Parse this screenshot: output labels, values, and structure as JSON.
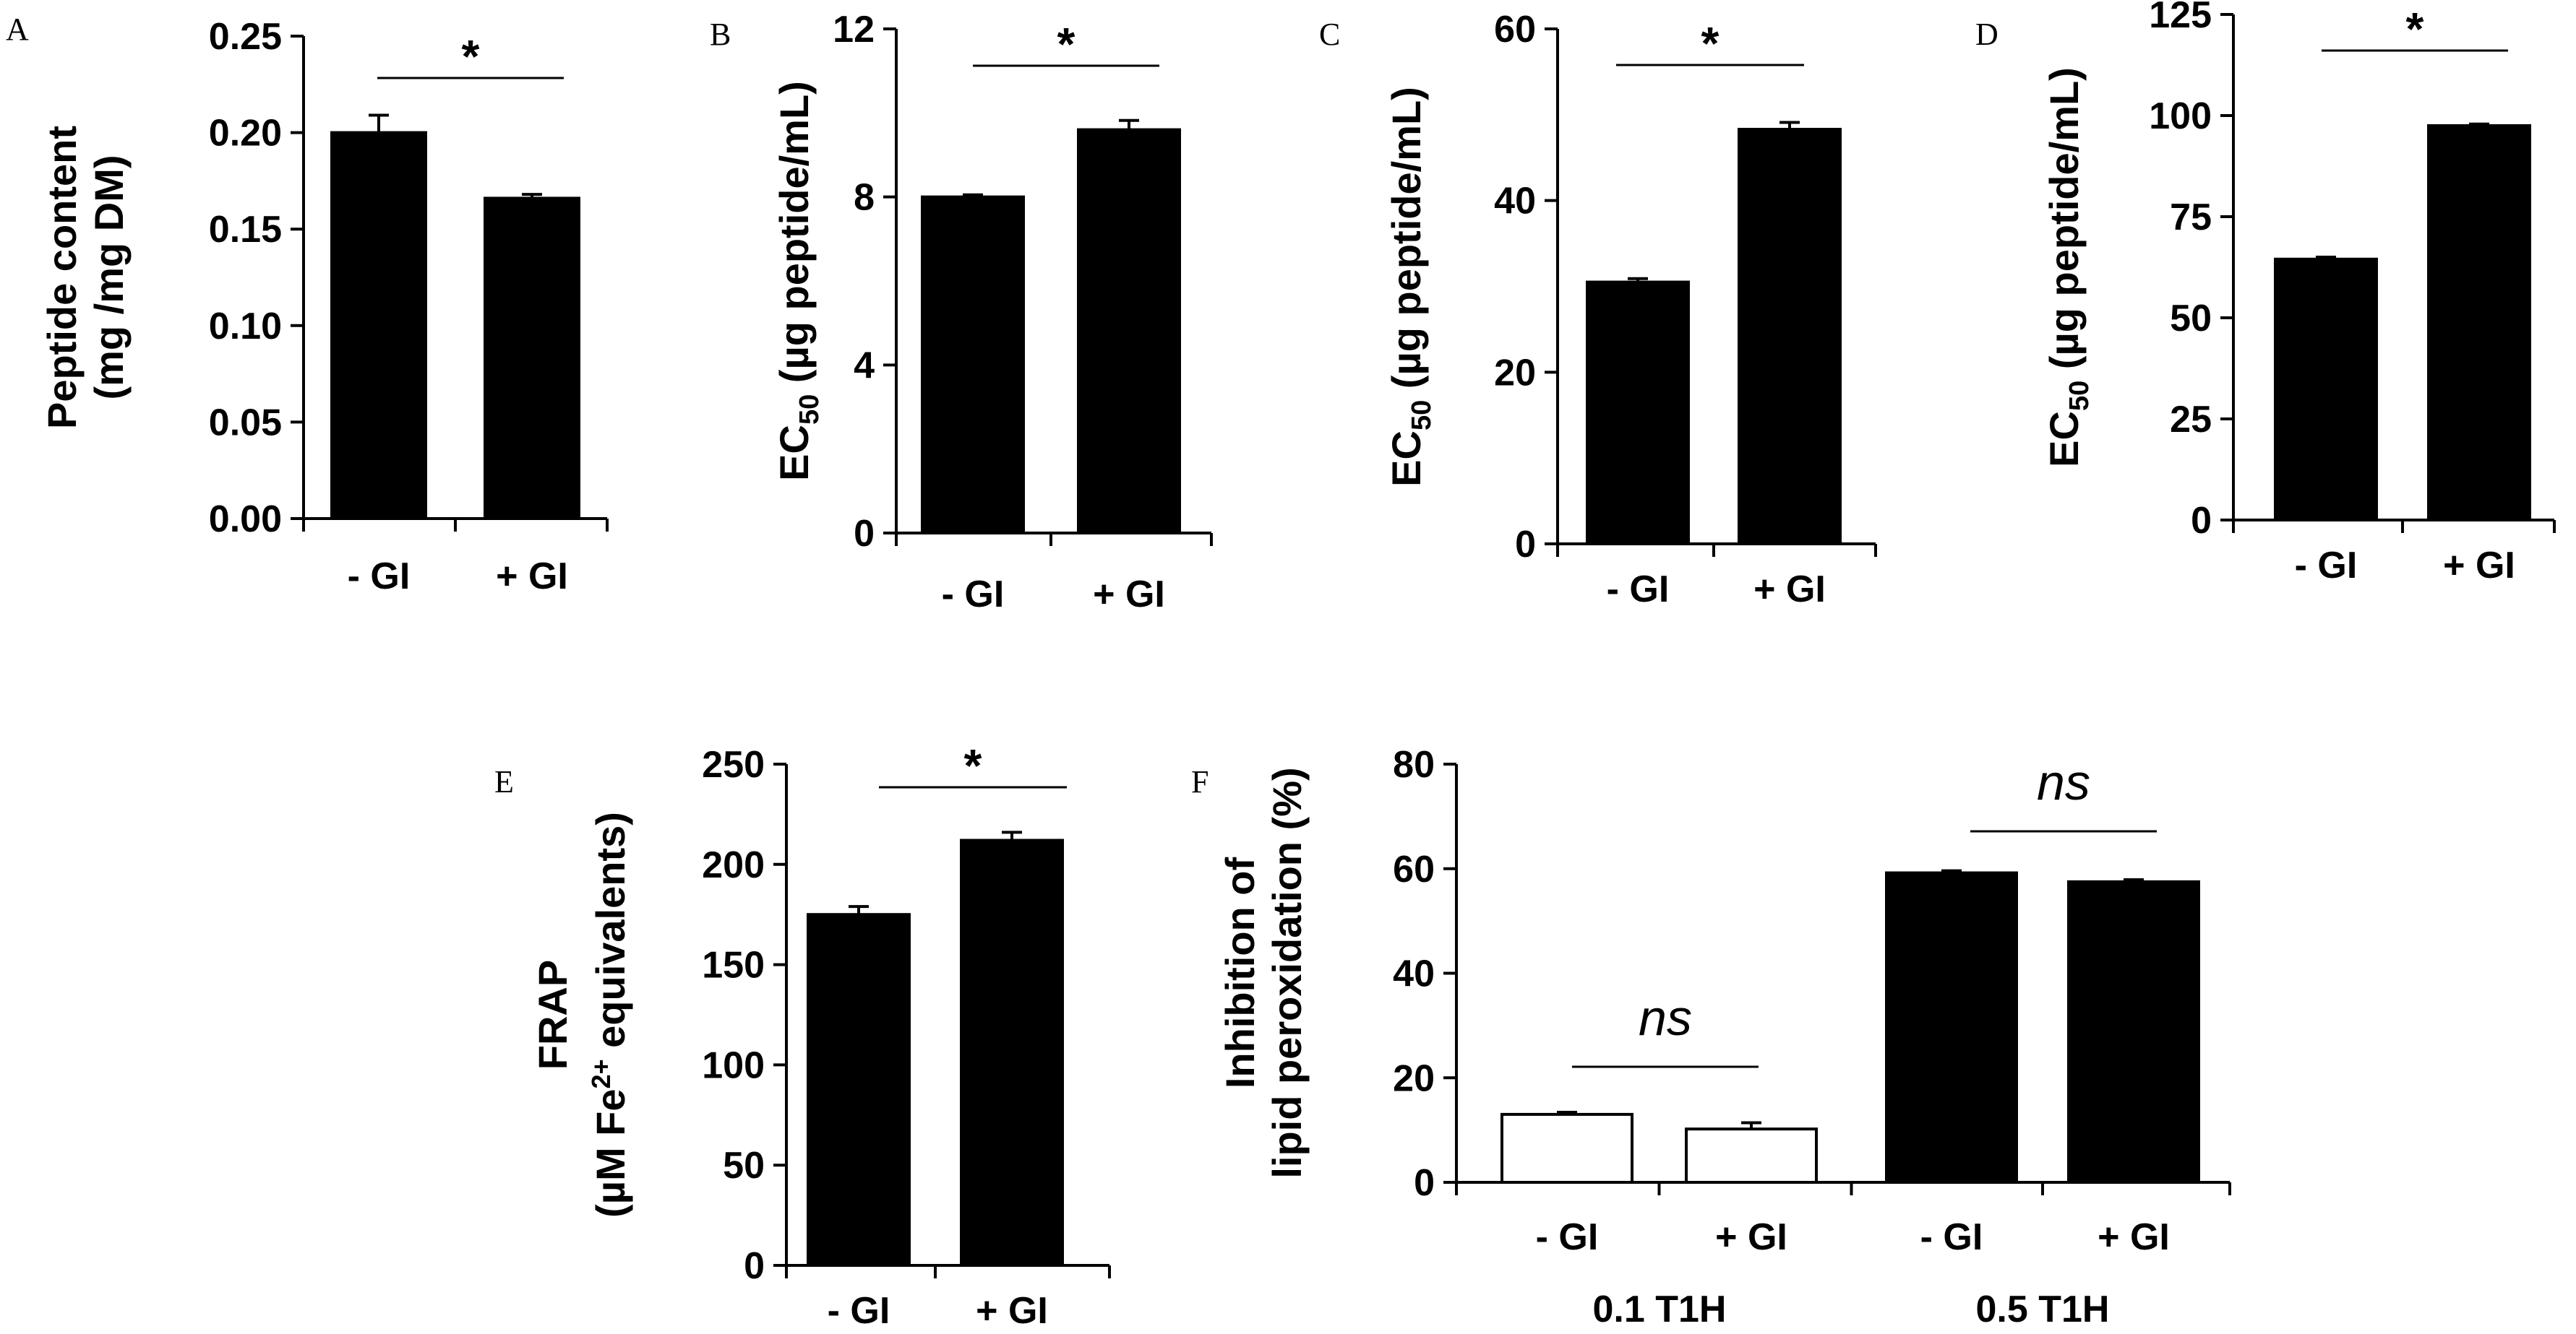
{
  "chart_data": [
    {
      "panel": "A",
      "type": "bar",
      "categories": [
        "- GI",
        "+ GI"
      ],
      "values": [
        0.2,
        0.166
      ],
      "errors": [
        0.009,
        0.002
      ],
      "fills": [
        "#000000",
        "#000000"
      ],
      "ylim": [
        0,
        0.25
      ],
      "yticks": [
        "0.00",
        "0.05",
        "0.10",
        "0.15",
        "0.20",
        "0.25"
      ],
      "ylabel_lines": [
        "Peptide content",
        "(mg /mg DM)"
      ],
      "significance": "*"
    },
    {
      "panel": "B",
      "type": "bar",
      "categories": [
        "- GI",
        "+ GI"
      ],
      "values": [
        8.0,
        9.6
      ],
      "errors": [
        0.05,
        0.22
      ],
      "fills": [
        "#000000",
        "#000000"
      ],
      "ylim": [
        0,
        12
      ],
      "yticks": [
        "0",
        "4",
        "8",
        "12"
      ],
      "ylabel": {
        "main": "EC",
        "sub": "50",
        "rest": " (µg peptide/mL)"
      },
      "significance": "*"
    },
    {
      "panel": "C",
      "type": "bar",
      "categories": [
        "- GI",
        "+ GI"
      ],
      "values": [
        30.5,
        48.3
      ],
      "errors": [
        0.4,
        0.8
      ],
      "fills": [
        "#000000",
        "#000000"
      ],
      "ylim": [
        0,
        60
      ],
      "yticks": [
        "0",
        "20",
        "40",
        "60"
      ],
      "ylabel": {
        "main": "EC",
        "sub": "50",
        "rest": " (µg peptide/mL)"
      },
      "significance": "*"
    },
    {
      "panel": "D",
      "type": "bar",
      "categories": [
        "- GI",
        "+ GI"
      ],
      "values": [
        64.5,
        97.5
      ],
      "errors": [
        0.5,
        0.4
      ],
      "fills": [
        "#000000",
        "#000000"
      ],
      "ylim": [
        0,
        125
      ],
      "yticks": [
        "0",
        "25",
        "50",
        "75",
        "100",
        "125"
      ],
      "ylabel": {
        "main": "EC",
        "sub": "50",
        "rest": " (µg peptide/mL)"
      },
      "significance": "*"
    },
    {
      "panel": "E",
      "type": "bar",
      "categories": [
        "- GI",
        "+ GI"
      ],
      "values": [
        175,
        212
      ],
      "errors": [
        4,
        4
      ],
      "fills": [
        "#000000",
        "#000000"
      ],
      "ylim": [
        0,
        250
      ],
      "yticks": [
        "0",
        "50",
        "100",
        "150",
        "200",
        "250"
      ],
      "ylabel_top": "FRAP",
      "ylabel_bottom": {
        "pre": "(µM Fe",
        "sup": "2+",
        "post": " equivalents)"
      },
      "significance": "*"
    },
    {
      "panel": "F",
      "type": "bar",
      "categories": [
        "- GI",
        "+ GI",
        "- GI",
        "+ GI"
      ],
      "values": [
        13.0,
        10.2,
        59.2,
        57.5
      ],
      "errors": [
        0.4,
        1.2,
        0.4,
        0.4
      ],
      "fills": [
        "#ffffff",
        "#ffffff",
        "#000000",
        "#000000"
      ],
      "groups": [
        "0.1 T1H",
        "0.5 T1H"
      ],
      "ylim": [
        0,
        80
      ],
      "yticks": [
        "0",
        "20",
        "40",
        "60",
        "80"
      ],
      "ylabel_lines": [
        "Inhibition of",
        "lipid peroxidation (%)"
      ],
      "significance": [
        "ns",
        "ns"
      ]
    }
  ]
}
